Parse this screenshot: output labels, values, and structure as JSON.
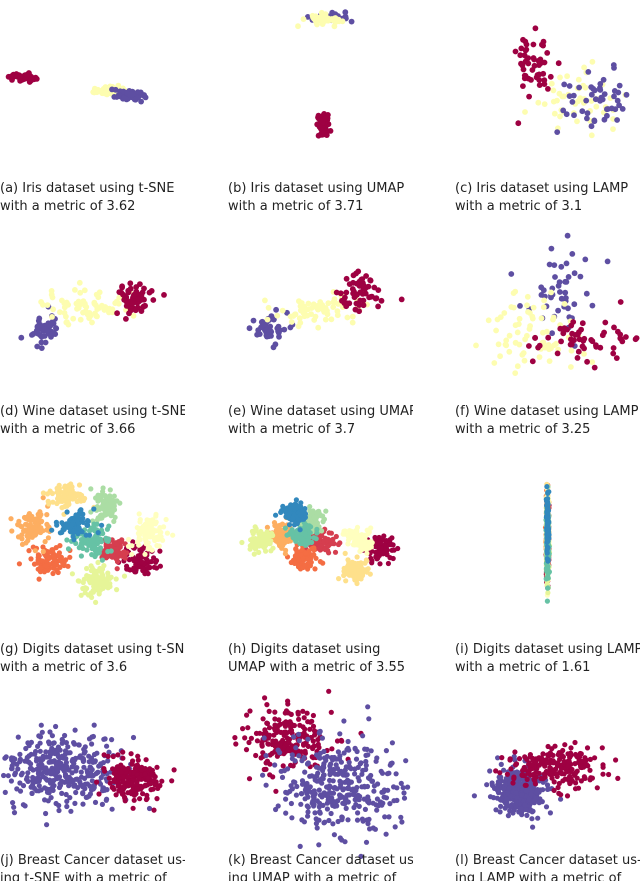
{
  "palette": {
    "class_0": "#9e0142",
    "class_1": "#fdfdb0",
    "class_2": "#5e4fa2",
    "digits_10": [
      "#9e0142",
      "#d53e4f",
      "#f46d43",
      "#fdae61",
      "#fee08b",
      "#ffffbf",
      "#e6f598",
      "#abdda4",
      "#66c2a5",
      "#3288bd",
      "#5e4fa2"
    ]
  },
  "figure": {
    "panels": [
      {
        "id": "a",
        "caption_lines": [
          "(a) Iris dataset using t-SNE",
          "with a metric of 3.62"
        ]
      },
      {
        "id": "b",
        "caption_lines": [
          "(b) Iris dataset using UMAP",
          "with a metric of 3.71"
        ]
      },
      {
        "id": "c",
        "caption_lines": [
          "(c) Iris dataset using LAMP",
          "with a metric of 3.1"
        ]
      },
      {
        "id": "d",
        "caption_lines": [
          "(d) Wine dataset using t-SNE",
          "with a metric of 3.66"
        ]
      },
      {
        "id": "e",
        "caption_lines": [
          "(e) Wine dataset using UMAP",
          "with a metric of 3.7"
        ]
      },
      {
        "id": "f",
        "caption_lines": [
          "(f) Wine dataset using LAMP",
          "with a metric of 3.25"
        ]
      },
      {
        "id": "g",
        "caption_lines": [
          "(g) Digits dataset using t-SNE",
          "with a metric of 3.6"
        ]
      },
      {
        "id": "h",
        "caption_lines": [
          "(h) Digits dataset using",
          "UMAP with a metric of 3.55"
        ]
      },
      {
        "id": "i",
        "caption_lines": [
          "(i) Digits dataset using LAMP",
          "with a metric of 1.61"
        ]
      },
      {
        "id": "j",
        "caption_lines": [
          "(j) Breast Cancer dataset us-",
          "ing t-SNE with a metric of"
        ]
      },
      {
        "id": "k",
        "caption_lines": [
          "(k) Breast Cancer dataset us-",
          "ing UMAP with a metric of"
        ]
      },
      {
        "id": "l",
        "caption_lines": [
          "(l) Breast Cancer dataset us-",
          "ing LAMP with a metric of"
        ]
      }
    ]
  },
  "chart_data": [
    {
      "panel": "a",
      "type": "scatter",
      "dataset": "Iris",
      "method": "t-SNE",
      "metric": 3.62,
      "clusters": [
        {
          "class": 0,
          "center": [
            -32,
            4
          ],
          "spread": [
            3,
            1
          ],
          "count": 50
        },
        {
          "class": 1,
          "center": [
            6,
            -3
          ],
          "spread": [
            3.5,
            1
          ],
          "count": 50
        },
        {
          "class": 2,
          "center": [
            16,
            -5
          ],
          "spread": [
            4.5,
            1.4
          ],
          "count": 50
        }
      ]
    },
    {
      "panel": "b",
      "type": "scatter",
      "dataset": "Iris",
      "method": "UMAP",
      "metric": 3.71,
      "clusters": [
        {
          "class": 2,
          "center": [
            4,
            34
          ],
          "spread": [
            4.5,
            1.2
          ],
          "count": 50
        },
        {
          "class": 1,
          "center": [
            1,
            33
          ],
          "spread": [
            3.5,
            1.2
          ],
          "count": 50
        },
        {
          "class": 0,
          "center": [
            1,
            -20
          ],
          "spread": [
            1.6,
            2.5
          ],
          "count": 50
        }
      ]
    },
    {
      "panel": "c",
      "type": "scatter",
      "dataset": "Iris",
      "method": "LAMP",
      "metric": 3.1,
      "clusters": [
        {
          "class": 0,
          "center": [
            -6,
            12
          ],
          "spread": [
            5,
            9
          ],
          "count": 50
        },
        {
          "class": 1,
          "center": [
            14,
            -8
          ],
          "spread": [
            10,
            8
          ],
          "count": 50
        },
        {
          "class": 2,
          "center": [
            26,
            -6
          ],
          "spread": [
            10,
            7
          ],
          "count": 50
        }
      ]
    },
    {
      "panel": "d",
      "type": "scatter",
      "dataset": "Wine",
      "method": "t-SNE",
      "metric": 3.66,
      "clusters": [
        {
          "class": 2,
          "center": [
            -22,
            -10
          ],
          "spread": [
            4,
            4
          ],
          "count": 48
        },
        {
          "class": 1,
          "center": [
            -2,
            2
          ],
          "spread": [
            10,
            4
          ],
          "count": 71
        },
        {
          "class": 0,
          "center": [
            18,
            6
          ],
          "spread": [
            4.5,
            4.5
          ],
          "count": 59
        }
      ]
    },
    {
      "panel": "e",
      "type": "scatter",
      "dataset": "Wine",
      "method": "UMAP",
      "metric": 3.7,
      "clusters": [
        {
          "class": 2,
          "center": [
            -24,
            -10
          ],
          "spread": [
            4,
            4
          ],
          "count": 48
        },
        {
          "class": 1,
          "center": [
            -2,
            0
          ],
          "spread": [
            10,
            4
          ],
          "count": 71
        },
        {
          "class": 0,
          "center": [
            18,
            8
          ],
          "spread": [
            5,
            5
          ],
          "count": 59
        }
      ]
    },
    {
      "panel": "f",
      "type": "scatter",
      "dataset": "Wine",
      "method": "LAMP",
      "metric": 3.25,
      "clusters": [
        {
          "class": 2,
          "center": [
            6,
            12
          ],
          "spread": [
            10,
            14
          ],
          "count": 48
        },
        {
          "class": 1,
          "center": [
            -6,
            -10
          ],
          "spread": [
            12,
            10
          ],
          "count": 71
        },
        {
          "class": 0,
          "center": [
            16,
            -16
          ],
          "spread": [
            14,
            5
          ],
          "count": 59
        }
      ]
    },
    {
      "panel": "g",
      "type": "scatter",
      "dataset": "Digits",
      "method": "t-SNE",
      "metric": 3.6,
      "clusters": [
        {
          "class": 0,
          "center": [
            22,
            -10
          ],
          "spread": [
            4,
            4
          ],
          "count": 90
        },
        {
          "class": 1,
          "center": [
            10,
            -5
          ],
          "spread": [
            3,
            3
          ],
          "count": 90
        },
        {
          "class": 2,
          "center": [
            -20,
            -10
          ],
          "spread": [
            4,
            4
          ],
          "count": 90
        },
        {
          "class": 3,
          "center": [
            -28,
            7
          ],
          "spread": [
            3.5,
            4
          ],
          "count": 90
        },
        {
          "class": 4,
          "center": [
            -12,
            22
          ],
          "spread": [
            4,
            3
          ],
          "count": 90
        },
        {
          "class": 5,
          "center": [
            26,
            4
          ],
          "spread": [
            4,
            4
          ],
          "count": 90
        },
        {
          "class": 6,
          "center": [
            2,
            -20
          ],
          "spread": [
            4,
            4
          ],
          "count": 90
        },
        {
          "class": 7,
          "center": [
            6,
            18
          ],
          "spread": [
            3,
            4
          ],
          "count": 90
        },
        {
          "class": 8,
          "center": [
            0,
            0
          ],
          "spread": [
            4,
            4
          ],
          "count": 90
        },
        {
          "class": 9,
          "center": [
            -8,
            8
          ],
          "spread": [
            4,
            3
          ],
          "count": 90
        }
      ]
    },
    {
      "panel": "h",
      "type": "scatter",
      "dataset": "Digits",
      "method": "UMAP",
      "metric": 3.55,
      "clusters": [
        {
          "class": 0,
          "center": [
            28,
            -4
          ],
          "spread": [
            3,
            3
          ],
          "count": 90
        },
        {
          "class": 1,
          "center": [
            0,
            0
          ],
          "spread": [
            3,
            3
          ],
          "count": 90
        },
        {
          "class": 2,
          "center": [
            -8,
            -8
          ],
          "spread": [
            3,
            3
          ],
          "count": 90
        },
        {
          "class": 3,
          "center": [
            -18,
            3
          ],
          "spread": [
            3,
            3
          ],
          "count": 90
        },
        {
          "class": 4,
          "center": [
            16,
            -15
          ],
          "spread": [
            3,
            3
          ],
          "count": 90
        },
        {
          "class": 5,
          "center": [
            18,
            1
          ],
          "spread": [
            3,
            3
          ],
          "count": 90
        },
        {
          "class": 6,
          "center": [
            -28,
            0
          ],
          "spread": [
            3,
            3
          ],
          "count": 90
        },
        {
          "class": 7,
          "center": [
            -4,
            10
          ],
          "spread": [
            3,
            3
          ],
          "count": 90
        },
        {
          "class": 8,
          "center": [
            -8,
            3
          ],
          "spread": [
            3,
            3
          ],
          "count": 90
        },
        {
          "class": 9,
          "center": [
            -12,
            14
          ],
          "spread": [
            3,
            3
          ],
          "count": 90
        }
      ]
    },
    {
      "panel": "i",
      "type": "scatter",
      "dataset": "Digits",
      "method": "LAMP",
      "metric": 1.61,
      "clusters": [
        {
          "class": 0,
          "center": [
            0,
            -6
          ],
          "spread": [
            0.3,
            10
          ],
          "count": 90
        },
        {
          "class": 1,
          "center": [
            0,
            2
          ],
          "spread": [
            0.3,
            10
          ],
          "count": 90
        },
        {
          "class": 2,
          "center": [
            0,
            6
          ],
          "spread": [
            0.3,
            8
          ],
          "count": 90
        },
        {
          "class": 3,
          "center": [
            0,
            -2
          ],
          "spread": [
            0.3,
            8
          ],
          "count": 90
        },
        {
          "class": 4,
          "center": [
            0,
            10
          ],
          "spread": [
            0.3,
            10
          ],
          "count": 90
        },
        {
          "class": 5,
          "center": [
            0,
            0
          ],
          "spread": [
            0.3,
            10
          ],
          "count": 90
        },
        {
          "class": 6,
          "center": [
            0,
            -8
          ],
          "spread": [
            0.3,
            8
          ],
          "count": 90
        },
        {
          "class": 7,
          "center": [
            0,
            4
          ],
          "spread": [
            0.3,
            8
          ],
          "count": 90
        },
        {
          "class": 8,
          "center": [
            0,
            -4
          ],
          "spread": [
            0.3,
            8
          ],
          "count": 90
        },
        {
          "class": 9,
          "center": [
            0,
            8
          ],
          "spread": [
            0.3,
            8
          ],
          "count": 90
        }
      ]
    },
    {
      "panel": "j",
      "type": "scatter",
      "dataset": "Breast Cancer",
      "method": "t-SNE",
      "metric": null,
      "clusters": [
        {
          "class": 2,
          "center": [
            -14,
            2
          ],
          "spread": [
            14,
            9
          ],
          "count": 357
        },
        {
          "class": 0,
          "center": [
            20,
            -2
          ],
          "spread": [
            6,
            5
          ],
          "count": 212
        }
      ]
    },
    {
      "panel": "k",
      "type": "scatter",
      "dataset": "Breast Cancer",
      "method": "UMAP",
      "metric": null,
      "clusters": [
        {
          "class": 0,
          "center": [
            -16,
            18
          ],
          "spread": [
            10,
            8
          ],
          "count": 212
        },
        {
          "class": 2,
          "center": [
            8,
            -6
          ],
          "spread": [
            14,
            12
          ],
          "count": 357
        }
      ]
    },
    {
      "panel": "l",
      "type": "scatter",
      "dataset": "Breast Cancer",
      "method": "LAMP",
      "metric": null,
      "clusters": [
        {
          "class": 2,
          "center": [
            -12,
            -8
          ],
          "spread": [
            6,
            6
          ],
          "count": 357
        },
        {
          "class": 0,
          "center": [
            4,
            4
          ],
          "spread": [
            10,
            5
          ],
          "count": 212
        }
      ]
    }
  ]
}
